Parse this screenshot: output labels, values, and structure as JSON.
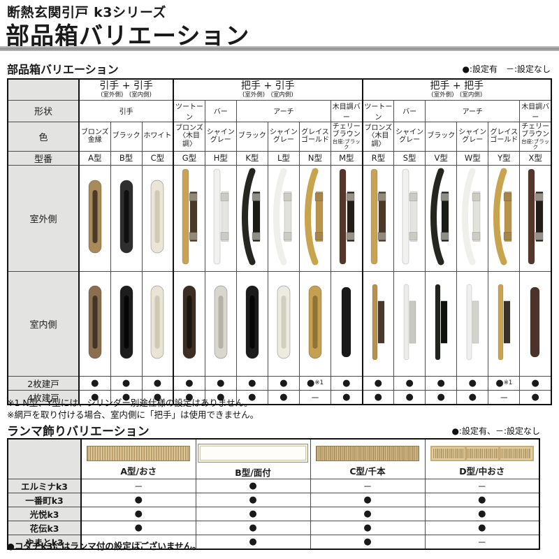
{
  "page": {
    "series": "断熱玄関引戸 k3シリーズ",
    "title": "部品箱バリエーション"
  },
  "parts": {
    "heading": "部品箱バリエーション",
    "legend": "●:設定有　－:設定なし",
    "row_labels": {
      "shape": "形状",
      "color": "色",
      "model": "型番",
      "outdoor": "室外側",
      "indoor": "室内側",
      "two_panel": "2枚建戸",
      "four_panel": "4枚建戸"
    },
    "groups": [
      {
        "title": "引手 + 引手",
        "sub": "(室外側)　(室内側)",
        "cols": 3,
        "shapes": [
          {
            "label": "引手",
            "span": 3
          }
        ],
        "colors": [
          {
            "main": "ブロンズ金縁",
            "sub": ""
          },
          {
            "main": "ブラック",
            "sub": ""
          },
          {
            "main": "ホワイト",
            "sub": ""
          }
        ],
        "models": [
          "A型",
          "B型",
          "C型"
        ]
      },
      {
        "title": "把手 + 引手",
        "sub": "(室外側)　(室内側)",
        "cols": 6,
        "shapes": [
          {
            "label": "ツートーン",
            "span": 1
          },
          {
            "label": "バー",
            "span": 1
          },
          {
            "label": "アーチ",
            "span": 3
          },
          {
            "label": "木目調バー",
            "span": 1
          }
        ],
        "colors": [
          {
            "main": "ブロンズ〈木目調〉",
            "sub": ""
          },
          {
            "main": "シャイングレー",
            "sub": ""
          },
          {
            "main": "ブラック",
            "sub": ""
          },
          {
            "main": "シャイングレー",
            "sub": ""
          },
          {
            "main": "グレイスゴールド",
            "sub": ""
          },
          {
            "main": "チェリーブラウン",
            "sub": "台座:ブラック"
          }
        ],
        "models": [
          "G型",
          "H型",
          "K型",
          "L型",
          "N型",
          "M型"
        ]
      },
      {
        "title": "把手 + 把手",
        "sub": "(室外側)　(室内側)",
        "cols": 6,
        "shapes": [
          {
            "label": "ツートーン",
            "span": 1
          },
          {
            "label": "バー",
            "span": 1
          },
          {
            "label": "アーチ",
            "span": 3
          },
          {
            "label": "木目調バー",
            "span": 1
          }
        ],
        "colors": [
          {
            "main": "ブロンズ〈木目調〉",
            "sub": ""
          },
          {
            "main": "シャイングレー",
            "sub": ""
          },
          {
            "main": "ブラック",
            "sub": ""
          },
          {
            "main": "シャイングレー",
            "sub": ""
          },
          {
            "main": "グレイスゴールド",
            "sub": ""
          },
          {
            "main": "チェリーブラウン",
            "sub": "台座:ブラック"
          }
        ],
        "models": [
          "R型",
          "S型",
          "V型",
          "W型",
          "Y型",
          "X型"
        ]
      }
    ],
    "availability": {
      "two_panel": [
        "●",
        "●",
        "●",
        "●",
        "●",
        "●",
        "●",
        "●※1",
        "●",
        "●",
        "●",
        "●",
        "●",
        "●※1",
        "●"
      ],
      "four_panel": [
        "●",
        "●",
        "●",
        "●",
        "●",
        "●",
        "●",
        "－",
        "●",
        "●",
        "●",
        "●",
        "●",
        "－",
        "●"
      ]
    },
    "notes": [
      "※1 N型、Y型には、シリンダー別途仕様の設定はありません。",
      "※網戸を取り付ける場合、室内側に「把手」は使用できません。"
    ]
  },
  "handles": {
    "outdoor": [
      {
        "type": "pull",
        "frame": "#a98a58",
        "slot": "#4a3a2a"
      },
      {
        "type": "pull",
        "frame": "#2e2e2e",
        "slot": "#0f0f0f"
      },
      {
        "type": "pull",
        "frame": "#eae5d6",
        "slot": "#cfc9b6"
      },
      {
        "type": "grip",
        "shape": "straight",
        "bar": "#c9a254",
        "panel": "#4a3929",
        "bracket": "#93897b"
      },
      {
        "type": "grip",
        "shape": "straight",
        "bar": "#f1f1ef",
        "panel": "#e4e4e0",
        "bracket": "#cbcbc5"
      },
      {
        "type": "grip",
        "shape": "arch",
        "bar": "#24261f",
        "panel": "#191b15",
        "bracket": "#8e8e86"
      },
      {
        "type": "grip",
        "shape": "arch",
        "bar": "#efefeb",
        "panel": "#e2e2dc",
        "bracket": "#ccccc4"
      },
      {
        "type": "grip",
        "shape": "arch",
        "bar": "#c9a44e",
        "panel": "#b8954a",
        "bracket": "#a5854a"
      },
      {
        "type": "grip",
        "shape": "straight",
        "bar": "#54362a",
        "panel": "#241c16",
        "bracket": "#97918a"
      },
      {
        "type": "grip",
        "shape": "straight",
        "bar": "#c9a254",
        "panel": "#4a3929",
        "bracket": "#93897b"
      },
      {
        "type": "grip",
        "shape": "straight",
        "bar": "#f1f1ef",
        "panel": "#e4e4e0",
        "bracket": "#cbcbc5"
      },
      {
        "type": "grip",
        "shape": "arch",
        "bar": "#24261f",
        "panel": "#191b15",
        "bracket": "#8e8e86"
      },
      {
        "type": "grip",
        "shape": "arch",
        "bar": "#efefeb",
        "panel": "#e2e2dc",
        "bracket": "#ccccc4"
      },
      {
        "type": "grip",
        "shape": "arch",
        "bar": "#c9a44e",
        "panel": "#b8954a",
        "bracket": "#a5854a"
      },
      {
        "type": "grip",
        "shape": "straight",
        "bar": "#54362a",
        "panel": "#241c16",
        "bracket": "#97918a"
      }
    ],
    "indoor": [
      {
        "type": "pull",
        "frame": "#8b6f4d",
        "slot": "#42362a"
      },
      {
        "type": "pull",
        "frame": "#1d1d1d",
        "slot": "#060606"
      },
      {
        "type": "pull",
        "frame": "#e9e4d4",
        "slot": "#cec8b4"
      },
      {
        "type": "pull",
        "frame": "#3c2e23",
        "slot": "#1c140e"
      },
      {
        "type": "pull",
        "frame": "#d8d6ce",
        "slot": "#b4b2a8"
      },
      {
        "type": "pull",
        "frame": "#1b1b1b",
        "slot": "#050505"
      },
      {
        "type": "pull",
        "frame": "#edebe0",
        "slot": "#d2cec0"
      },
      {
        "type": "pull",
        "frame": "#c4a050",
        "slot": "#8f7436"
      },
      {
        "type": "cyl",
        "bar": "#181818"
      },
      {
        "type": "side",
        "bar": "#b9914a",
        "plate": "#4a3929"
      },
      {
        "type": "side",
        "bar": "#ececea",
        "plate": "#c9c9c3"
      },
      {
        "type": "side",
        "bar": "#22241e",
        "plate": "#0f110c"
      },
      {
        "type": "side",
        "bar": "#f0f0ee",
        "plate": "#d3d3cd"
      },
      {
        "type": "side",
        "bar": "#c8a44e",
        "plate": "#383229"
      },
      {
        "type": "cyl",
        "bar": "#4c332a"
      }
    ]
  },
  "ranma": {
    "heading": "ランマ飾りバリエーション",
    "legend": "●:設定有、－:設定なし",
    "columns": [
      {
        "label": "A型/おさ",
        "img": "slats-a"
      },
      {
        "label": "B型/面付",
        "img": "panel-b"
      },
      {
        "label": "C型/千本",
        "img": "slats-c"
      },
      {
        "label": "D型/中おさ",
        "img": "framed-d"
      }
    ],
    "rows": [
      {
        "label": "エルミナk3",
        "values": [
          "－",
          "●",
          "－",
          "－"
        ]
      },
      {
        "label": "一番町k3",
        "values": [
          "●",
          "●",
          "●",
          "●"
        ]
      },
      {
        "label": "光悦k3",
        "values": [
          "●",
          "●",
          "●",
          "●"
        ]
      },
      {
        "label": "花伝k3",
        "values": [
          "●",
          "●",
          "●",
          "●"
        ]
      },
      {
        "label": "やまとk3",
        "values": [
          "－",
          "●",
          "●",
          "－"
        ]
      }
    ],
    "note": "●コダチk3にはランマ付の設定はございません。"
  }
}
